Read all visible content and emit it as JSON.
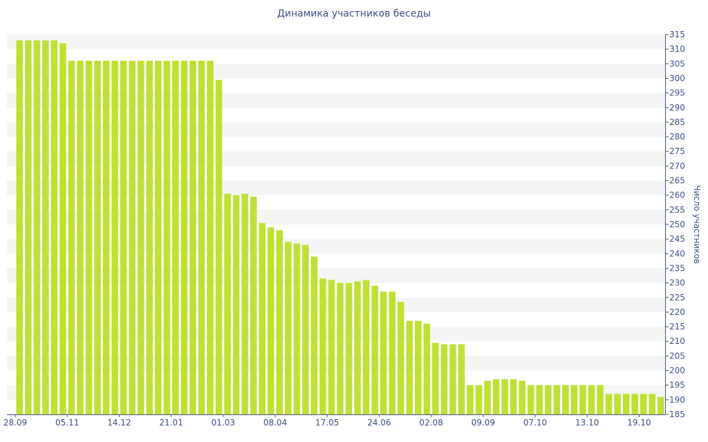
{
  "chart_data": {
    "type": "bar",
    "title": "Динамика участников беседы",
    "ylabel": "Число участников",
    "xlabel": "",
    "ylim": [
      185,
      315
    ],
    "yticks": [
      185,
      190,
      195,
      200,
      205,
      210,
      215,
      220,
      225,
      230,
      235,
      240,
      245,
      250,
      255,
      260,
      265,
      270,
      275,
      280,
      285,
      290,
      295,
      300,
      305,
      310,
      315
    ],
    "y_axis_position": "right",
    "bar_color": "#bfe034",
    "band_color": "#f5f5f5",
    "x_tick_labels": [
      {
        "label": "28.09",
        "index": 0
      },
      {
        "label": "05.11",
        "index": 5.5
      },
      {
        "label": "14.12",
        "index": 11.5
      },
      {
        "label": "21.01",
        "index": 17.5
      },
      {
        "label": "01.03",
        "index": 23.5
      },
      {
        "label": "08.04",
        "index": 29.5
      },
      {
        "label": "17.05",
        "index": 35.5
      },
      {
        "label": "24.06",
        "index": 41.5
      },
      {
        "label": "02.08",
        "index": 47.5
      },
      {
        "label": "09.09",
        "index": 53.5
      },
      {
        "label": "07.10",
        "index": 59.5
      },
      {
        "label": "13.10",
        "index": 65.5
      },
      {
        "label": "19.10",
        "index": 71.5
      }
    ],
    "values": [
      313,
      313,
      313,
      313,
      313,
      312,
      306,
      306,
      306,
      306,
      306,
      306,
      306,
      306,
      306,
      306,
      306,
      306,
      306,
      306,
      306,
      306,
      306,
      299.5,
      260.5,
      260,
      260.5,
      259.5,
      250.5,
      249,
      248,
      244,
      243.5,
      243,
      239,
      231.5,
      231,
      230,
      230,
      230.5,
      231,
      229,
      227,
      227,
      223.5,
      217,
      217,
      216,
      209.5,
      209,
      209,
      209,
      195,
      195,
      196.5,
      197,
      197,
      197,
      196.5,
      195,
      195,
      195,
      195,
      195,
      195,
      195,
      195,
      195,
      192,
      192,
      192,
      192,
      192,
      192,
      191
    ]
  }
}
